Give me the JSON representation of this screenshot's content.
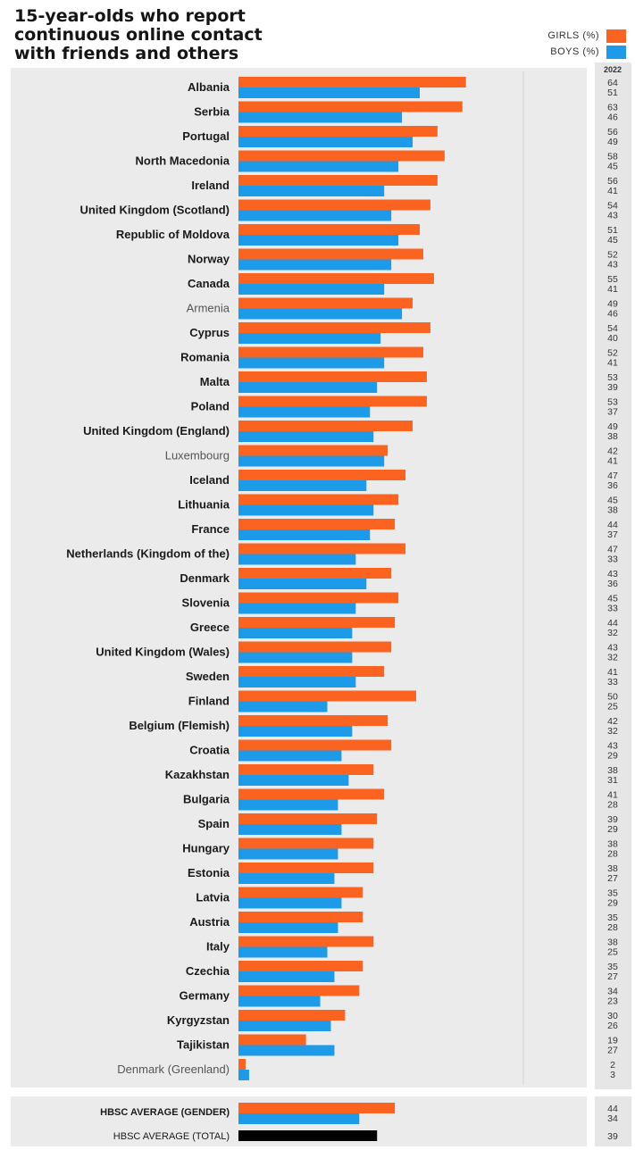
{
  "colors": {
    "girls": "#fb6321",
    "boys": "#1e9be8",
    "total": "#000000",
    "panel": "#ebebeb",
    "numpanel": "#e6e6e6"
  },
  "title": {
    "line1": "15-year-olds who report",
    "line2": "continuous online contact",
    "line3": "with friends and others"
  },
  "legend": {
    "girls": "GIRLS (%)",
    "boys": "BOYS (%)"
  },
  "chart_data": {
    "type": "bar",
    "orientation": "horizontal",
    "value_column_header": "2022",
    "xlim": [
      0,
      100
    ],
    "categories": [
      "Albania",
      "Serbia",
      "Portugal",
      "North Macedonia",
      "Ireland",
      "United Kingdom (Scotland)",
      "Republic of Moldova",
      "Norway",
      "Canada",
      "Armenia",
      "Cyprus",
      "Romania",
      "Malta",
      "Poland",
      "United Kingdom (England)",
      "Luxembourg",
      "Iceland",
      "Lithuania",
      "France",
      "Netherlands (Kingdom of the)",
      "Denmark",
      "Slovenia",
      "Greece",
      "United Kingdom (Wales)",
      "Sweden",
      "Finland",
      "Belgium (Flemish)",
      "Croatia",
      "Kazakhstan",
      "Bulgaria",
      "Spain",
      "Hungary",
      "Estonia",
      "Latvia",
      "Austria",
      "Italy",
      "Czechia",
      "Germany",
      "Kyrgyzstan",
      "Tajikistan",
      "Denmark (Greenland)"
    ],
    "light_categories": [
      "Armenia",
      "Luxembourg",
      "Denmark (Greenland)"
    ],
    "series": [
      {
        "name": "GIRLS (%)",
        "values": [
          64,
          63,
          56,
          58,
          56,
          54,
          51,
          52,
          55,
          49,
          54,
          52,
          53,
          53,
          49,
          42,
          47,
          45,
          44,
          47,
          43,
          45,
          44,
          43,
          41,
          50,
          42,
          43,
          38,
          41,
          39,
          38,
          38,
          35,
          35,
          38,
          35,
          34,
          30,
          19,
          2
        ]
      },
      {
        "name": "BOYS (%)",
        "values": [
          51,
          46,
          49,
          45,
          41,
          43,
          45,
          43,
          41,
          46,
          40,
          41,
          39,
          37,
          38,
          41,
          36,
          38,
          37,
          33,
          36,
          33,
          32,
          32,
          33,
          25,
          32,
          29,
          31,
          28,
          29,
          28,
          27,
          29,
          28,
          25,
          27,
          23,
          26,
          27,
          3
        ]
      }
    ],
    "averages": {
      "gender_label": "HBSC AVERAGE (GENDER)",
      "girls": 44,
      "boys": 34,
      "total_label": "HBSC AVERAGE (TOTAL)",
      "total": 39
    }
  }
}
